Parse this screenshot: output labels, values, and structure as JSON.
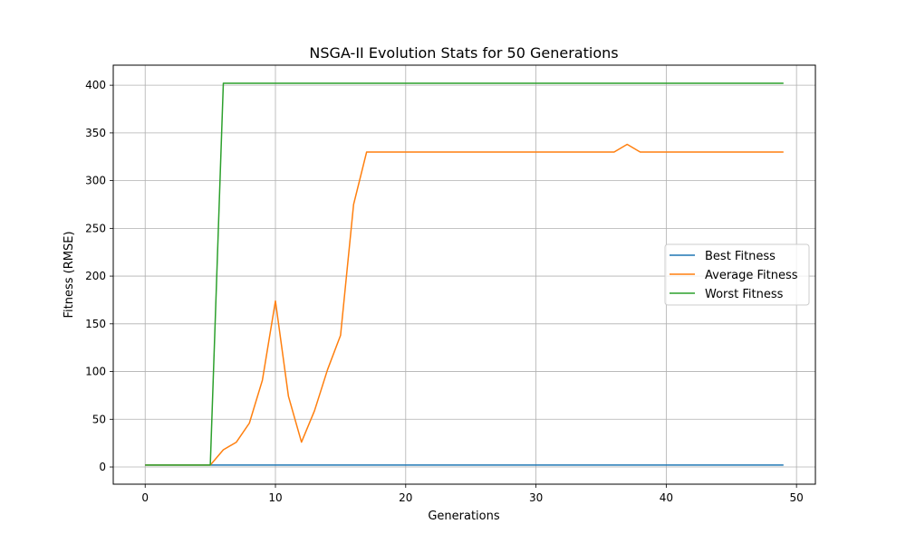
{
  "chart_data": {
    "type": "line",
    "title": "NSGA-II Evolution Stats for 50 Generations",
    "xlabel": "Generations",
    "ylabel": "Fitness (RMSE)",
    "xlim": [
      -2.45,
      51.45
    ],
    "ylim": [
      -18.0,
      421.0
    ],
    "xticks": [
      0,
      10,
      20,
      30,
      40,
      50
    ],
    "yticks": [
      0,
      50,
      100,
      150,
      200,
      250,
      300,
      350,
      400
    ],
    "grid": true,
    "legend_position": "center-right",
    "x": [
      0,
      1,
      2,
      3,
      4,
      5,
      6,
      7,
      8,
      9,
      10,
      11,
      12,
      13,
      14,
      15,
      16,
      17,
      18,
      19,
      20,
      21,
      22,
      23,
      24,
      25,
      26,
      27,
      28,
      29,
      30,
      31,
      32,
      33,
      34,
      35,
      36,
      37,
      38,
      39,
      40,
      41,
      42,
      43,
      44,
      45,
      46,
      47,
      48,
      49
    ],
    "series": [
      {
        "name": "Best Fitness",
        "color": "#1f77b4",
        "values": [
          2,
          2,
          2,
          2,
          2,
          2,
          2,
          2,
          2,
          2,
          2,
          2,
          2,
          2,
          2,
          2,
          2,
          2,
          2,
          2,
          2,
          2,
          2,
          2,
          2,
          2,
          2,
          2,
          2,
          2,
          2,
          2,
          2,
          2,
          2,
          2,
          2,
          2,
          2,
          2,
          2,
          2,
          2,
          2,
          2,
          2,
          2,
          2,
          2,
          2
        ]
      },
      {
        "name": "Average Fitness",
        "color": "#ff7f0e",
        "values": [
          2,
          2,
          2,
          2,
          2,
          2,
          18,
          26,
          46,
          91,
          174,
          74,
          26,
          59,
          102,
          138,
          275,
          330,
          330,
          330,
          330,
          330,
          330,
          330,
          330,
          330,
          330,
          330,
          330,
          330,
          330,
          330,
          330,
          330,
          330,
          330,
          330,
          338,
          330,
          330,
          330,
          330,
          330,
          330,
          330,
          330,
          330,
          330,
          330,
          330
        ]
      },
      {
        "name": "Worst Fitness",
        "color": "#2ca02c",
        "values": [
          2,
          2,
          2,
          2,
          2,
          2,
          402,
          402,
          402,
          402,
          402,
          402,
          402,
          402,
          402,
          402,
          402,
          402,
          402,
          402,
          402,
          402,
          402,
          402,
          402,
          402,
          402,
          402,
          402,
          402,
          402,
          402,
          402,
          402,
          402,
          402,
          402,
          402,
          402,
          402,
          402,
          402,
          402,
          402,
          402,
          402,
          402,
          402,
          402,
          402
        ]
      }
    ]
  }
}
